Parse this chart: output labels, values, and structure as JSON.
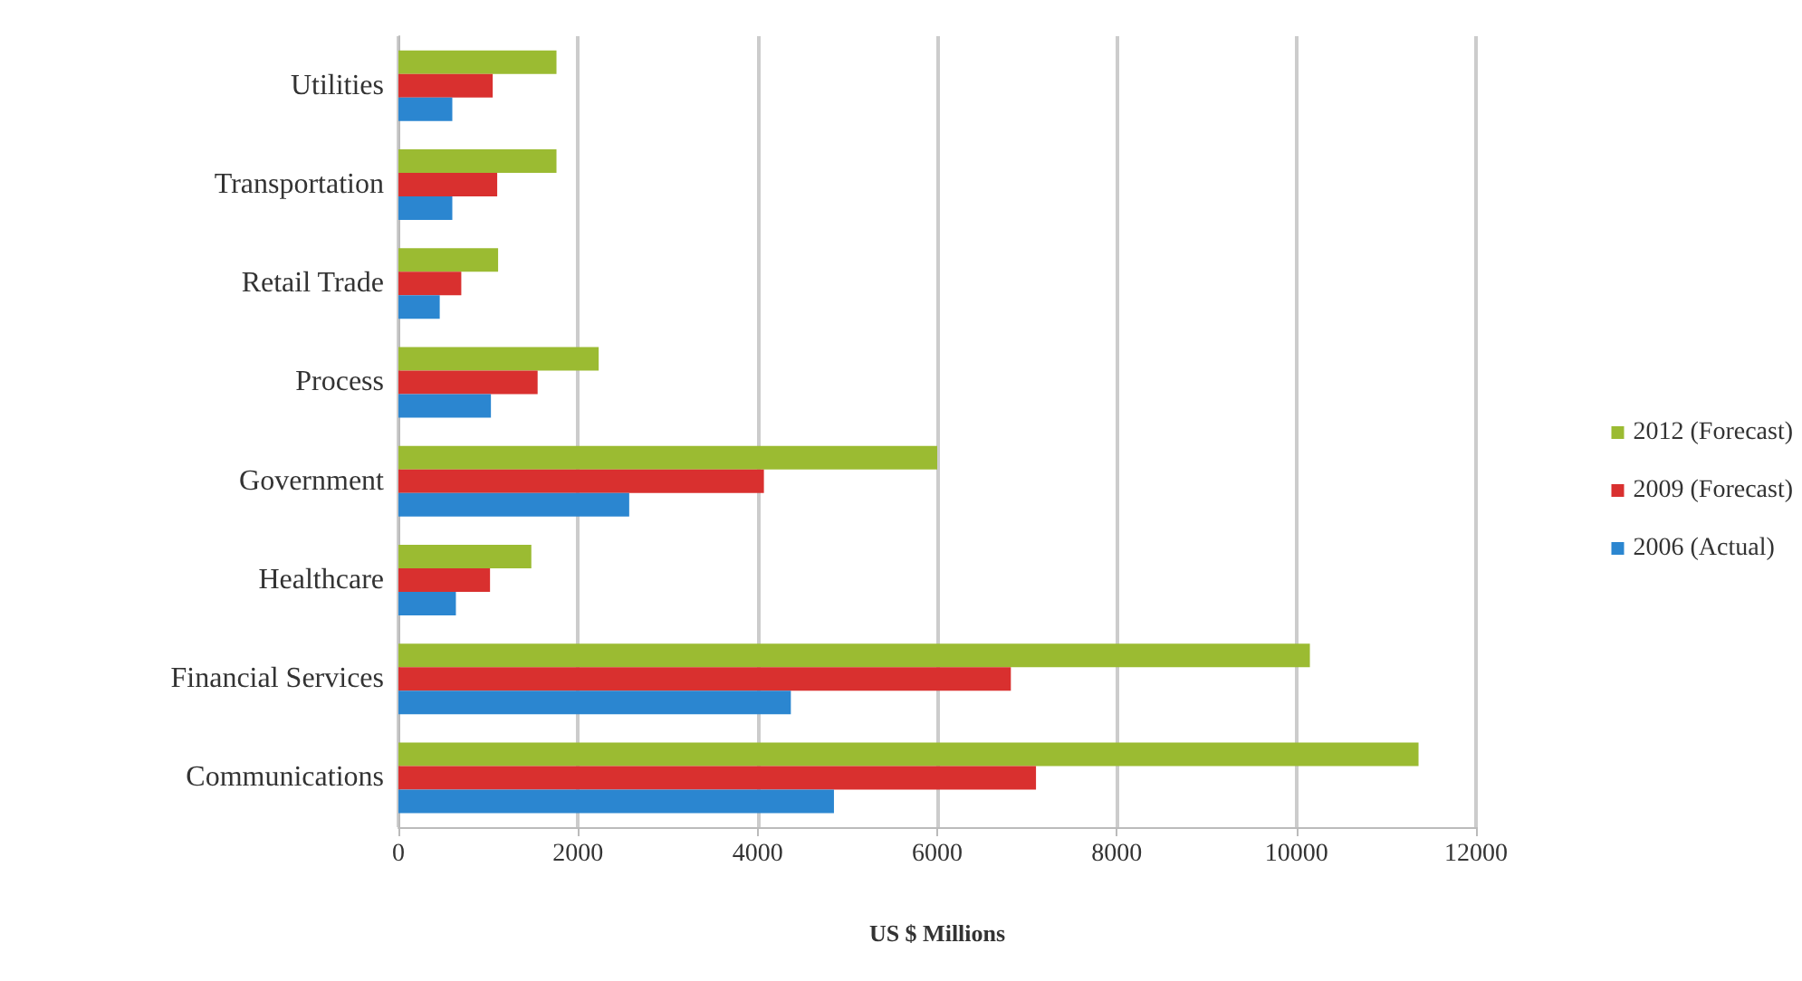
{
  "chart_data": {
    "type": "bar",
    "orientation": "horizontal",
    "xlabel": "US $ Millions",
    "categories": [
      "Utilities",
      "Transportation",
      "Retail Trade",
      "Process",
      "Government",
      "Healthcare",
      "Financial Services",
      "Communications"
    ],
    "series": [
      {
        "name": "2012 (Forecast)",
        "color": "#9bbb32",
        "values": [
          1760,
          1760,
          1110,
          2230,
          6000,
          1480,
          10150,
          11360
        ]
      },
      {
        "name": "2009 (Forecast)",
        "color": "#d9302f",
        "values": [
          1050,
          1100,
          700,
          1550,
          4070,
          1020,
          6820,
          7100
        ]
      },
      {
        "name": "2006 (Actual)",
        "color": "#2b86d0",
        "values": [
          600,
          600,
          460,
          1030,
          2570,
          640,
          4370,
          4850
        ]
      }
    ],
    "xlim": [
      0,
      12000
    ],
    "xticks": [
      0,
      2000,
      4000,
      6000,
      8000,
      10000,
      12000
    ],
    "grid": "x",
    "legend": "right"
  }
}
